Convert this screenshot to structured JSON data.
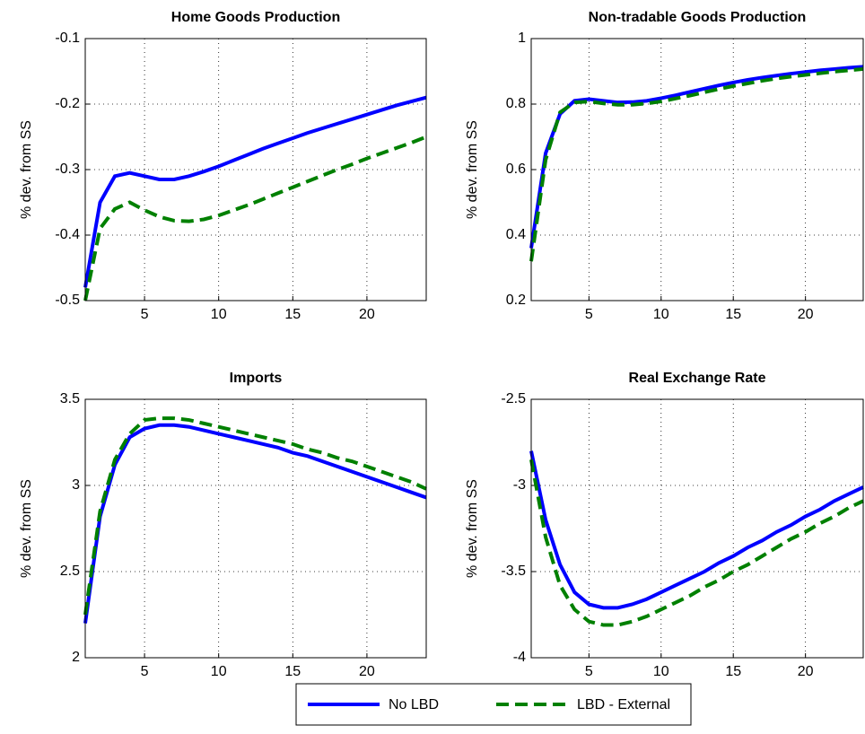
{
  "chart_data": [
    {
      "type": "line",
      "title": "Home Goods Production",
      "ylabel": "% dev. from SS",
      "x": [
        1,
        2,
        3,
        4,
        5,
        6,
        7,
        8,
        9,
        10,
        11,
        12,
        13,
        14,
        15,
        16,
        17,
        18,
        19,
        20,
        21,
        22,
        23,
        24
      ],
      "xlim": [
        1,
        24
      ],
      "xticks": [
        5,
        10,
        15,
        20
      ],
      "ylim": [
        -0.5,
        -0.1
      ],
      "yticks": [
        -0.5,
        -0.4,
        -0.3,
        -0.2,
        -0.1
      ],
      "grid": true,
      "series": [
        {
          "name": "No LBD",
          "color": "#0000ff",
          "values": [
            -0.48,
            -0.35,
            -0.31,
            -0.305,
            -0.31,
            -0.315,
            -0.315,
            -0.31,
            -0.303,
            -0.295,
            -0.286,
            -0.277,
            -0.268,
            -0.26,
            -0.252,
            -0.244,
            -0.237,
            -0.23,
            -0.223,
            -0.216,
            -0.209,
            -0.202,
            -0.196,
            -0.19
          ]
        },
        {
          "name": "LBD - External",
          "color": "#008000",
          "values": [
            -0.5,
            -0.39,
            -0.36,
            -0.35,
            -0.362,
            -0.372,
            -0.378,
            -0.379,
            -0.376,
            -0.37,
            -0.362,
            -0.354,
            -0.345,
            -0.336,
            -0.327,
            -0.318,
            -0.309,
            -0.3,
            -0.292,
            -0.283,
            -0.275,
            -0.267,
            -0.259,
            -0.25
          ]
        }
      ]
    },
    {
      "type": "line",
      "title": "Non-tradable Goods Production",
      "ylabel": "% dev. from SS",
      "x": [
        1,
        2,
        3,
        4,
        5,
        6,
        7,
        8,
        9,
        10,
        11,
        12,
        13,
        14,
        15,
        16,
        17,
        18,
        19,
        20,
        21,
        22,
        23,
        24
      ],
      "xlim": [
        1,
        24
      ],
      "xticks": [
        5,
        10,
        15,
        20
      ],
      "ylim": [
        0.2,
        1
      ],
      "yticks": [
        0.2,
        0.4,
        0.6,
        0.8,
        1
      ],
      "grid": true,
      "series": [
        {
          "color": "#0000ff",
          "values": [
            0.36,
            0.65,
            0.77,
            0.81,
            0.815,
            0.81,
            0.805,
            0.806,
            0.81,
            0.818,
            0.827,
            0.837,
            0.847,
            0.857,
            0.866,
            0.874,
            0.881,
            0.887,
            0.893,
            0.898,
            0.903,
            0.907,
            0.911,
            0.914
          ]
        },
        {
          "color": "#008000",
          "values": [
            0.32,
            0.63,
            0.775,
            0.805,
            0.808,
            0.802,
            0.798,
            0.798,
            0.802,
            0.808,
            0.817,
            0.826,
            0.836,
            0.846,
            0.855,
            0.863,
            0.871,
            0.878,
            0.884,
            0.889,
            0.894,
            0.899,
            0.903,
            0.907
          ]
        }
      ]
    },
    {
      "type": "line",
      "title": "Imports",
      "ylabel": "% dev. from SS",
      "x": [
        1,
        2,
        3,
        4,
        5,
        6,
        7,
        8,
        9,
        10,
        11,
        12,
        13,
        14,
        15,
        16,
        17,
        18,
        19,
        20,
        21,
        22,
        23,
        24
      ],
      "xlim": [
        1,
        24
      ],
      "xticks": [
        5,
        10,
        15,
        20
      ],
      "ylim": [
        2,
        3.5
      ],
      "yticks": [
        2,
        2.5,
        3,
        3.5
      ],
      "grid": true,
      "series": [
        {
          "color": "#0000ff",
          "values": [
            2.2,
            2.82,
            3.12,
            3.28,
            3.33,
            3.35,
            3.35,
            3.34,
            3.32,
            3.3,
            3.28,
            3.26,
            3.24,
            3.22,
            3.19,
            3.17,
            3.14,
            3.11,
            3.08,
            3.05,
            3.02,
            2.99,
            2.96,
            2.93
          ]
        },
        {
          "color": "#008000",
          "values": [
            2.25,
            2.85,
            3.15,
            3.3,
            3.38,
            3.39,
            3.39,
            3.38,
            3.36,
            3.34,
            3.32,
            3.3,
            3.28,
            3.26,
            3.24,
            3.21,
            3.19,
            3.16,
            3.14,
            3.11,
            3.08,
            3.05,
            3.02,
            2.98
          ]
        }
      ]
    },
    {
      "type": "line",
      "title": "Real Exchange Rate",
      "ylabel": "% dev. from SS",
      "x": [
        1,
        2,
        3,
        4,
        5,
        6,
        7,
        8,
        9,
        10,
        11,
        12,
        13,
        14,
        15,
        16,
        17,
        18,
        19,
        20,
        21,
        22,
        23,
        24
      ],
      "xlim": [
        1,
        24
      ],
      "xticks": [
        5,
        10,
        15,
        20
      ],
      "ylim": [
        -4,
        -2.5
      ],
      "yticks": [
        -4,
        -3.5,
        -3,
        -2.5
      ],
      "grid": true,
      "series": [
        {
          "color": "#0000ff",
          "values": [
            -2.8,
            -3.2,
            -3.46,
            -3.62,
            -3.69,
            -3.71,
            -3.71,
            -3.69,
            -3.66,
            -3.62,
            -3.58,
            -3.54,
            -3.5,
            -3.45,
            -3.41,
            -3.36,
            -3.32,
            -3.27,
            -3.23,
            -3.18,
            -3.14,
            -3.09,
            -3.05,
            -3.01
          ]
        },
        {
          "color": "#008000",
          "values": [
            -2.85,
            -3.3,
            -3.58,
            -3.72,
            -3.79,
            -3.81,
            -3.81,
            -3.79,
            -3.76,
            -3.72,
            -3.68,
            -3.64,
            -3.59,
            -3.55,
            -3.5,
            -3.46,
            -3.41,
            -3.36,
            -3.31,
            -3.27,
            -3.22,
            -3.18,
            -3.13,
            -3.09
          ]
        }
      ]
    }
  ]
}
